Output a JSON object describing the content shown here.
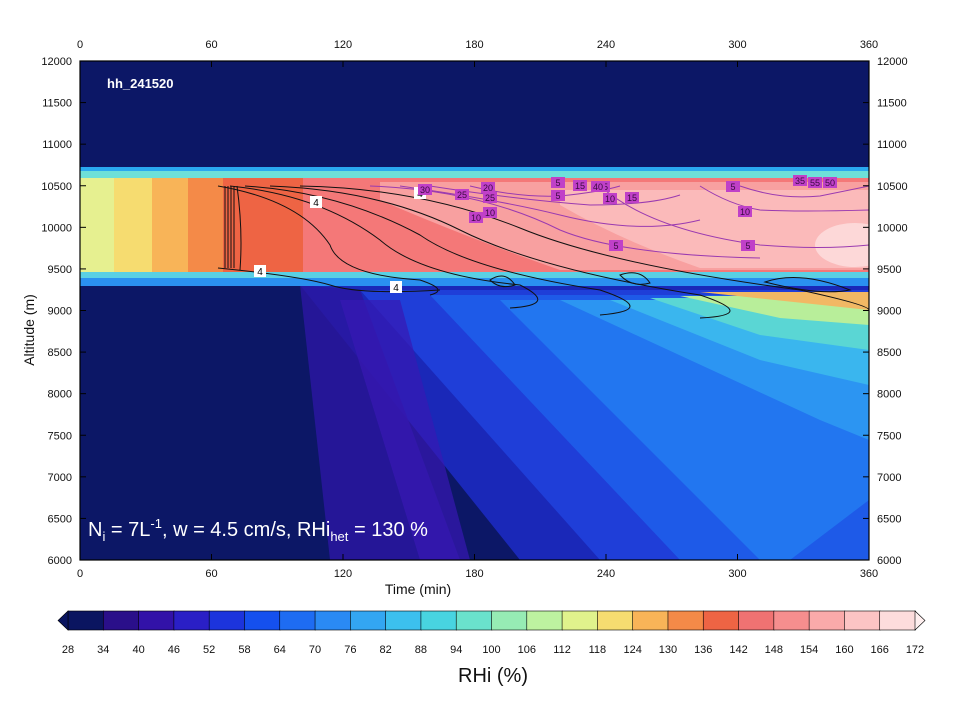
{
  "chart_data": {
    "type": "heatmap",
    "panel_label": "hh_241520",
    "xlabel": "Time (min)",
    "ylabel": "Altitude (m)",
    "xlim": [
      0,
      360
    ],
    "ylim": [
      6000,
      12000
    ],
    "x_ticks": [
      0,
      60,
      120,
      180,
      240,
      300,
      360
    ],
    "y_ticks": [
      6000,
      6500,
      7000,
      7500,
      8000,
      8500,
      9000,
      9500,
      10000,
      10500,
      11000,
      11500,
      12000
    ],
    "annotation": {
      "Ni": "N",
      "Ni_sub": "i",
      "Ni_eq": " = 7L",
      "Ni_exp": "-1",
      "w": ", w = 4.5 cm/s, RHi",
      "rhi_sub": "het",
      "rhi_val": " = 130 %"
    },
    "colorbar": {
      "title": "RHi (%)",
      "levels": [
        28,
        34,
        40,
        46,
        52,
        58,
        64,
        70,
        76,
        82,
        88,
        94,
        100,
        106,
        112,
        118,
        124,
        130,
        136,
        142,
        148,
        154,
        160,
        166,
        172
      ],
      "colors": [
        "#0a1560",
        "#2a0f8a",
        "#3212a8",
        "#2a1fc6",
        "#1c34dc",
        "#1550ee",
        "#1e6cf2",
        "#2a8af4",
        "#33a6f2",
        "#3cc0ee",
        "#48d4e0",
        "#6ae2cc",
        "#96ecb4",
        "#bdf2a0",
        "#e0f28c",
        "#f6dc70",
        "#f8b458",
        "#f48a48",
        "#ee6444",
        "#f07272",
        "#f68e8e",
        "#faaaaa",
        "#fcc4c4",
        "#fddcdc",
        "#fff0f0"
      ]
    },
    "contour_labels_black": [
      "4",
      "4",
      "4",
      "4"
    ],
    "contour_labels_purple": [
      "5",
      "5",
      "5",
      "5",
      "5",
      "10",
      "10",
      "10",
      "10",
      "15",
      "15",
      "20",
      "25",
      "25",
      "30",
      "35",
      "35",
      "40",
      "50",
      "55"
    ]
  }
}
